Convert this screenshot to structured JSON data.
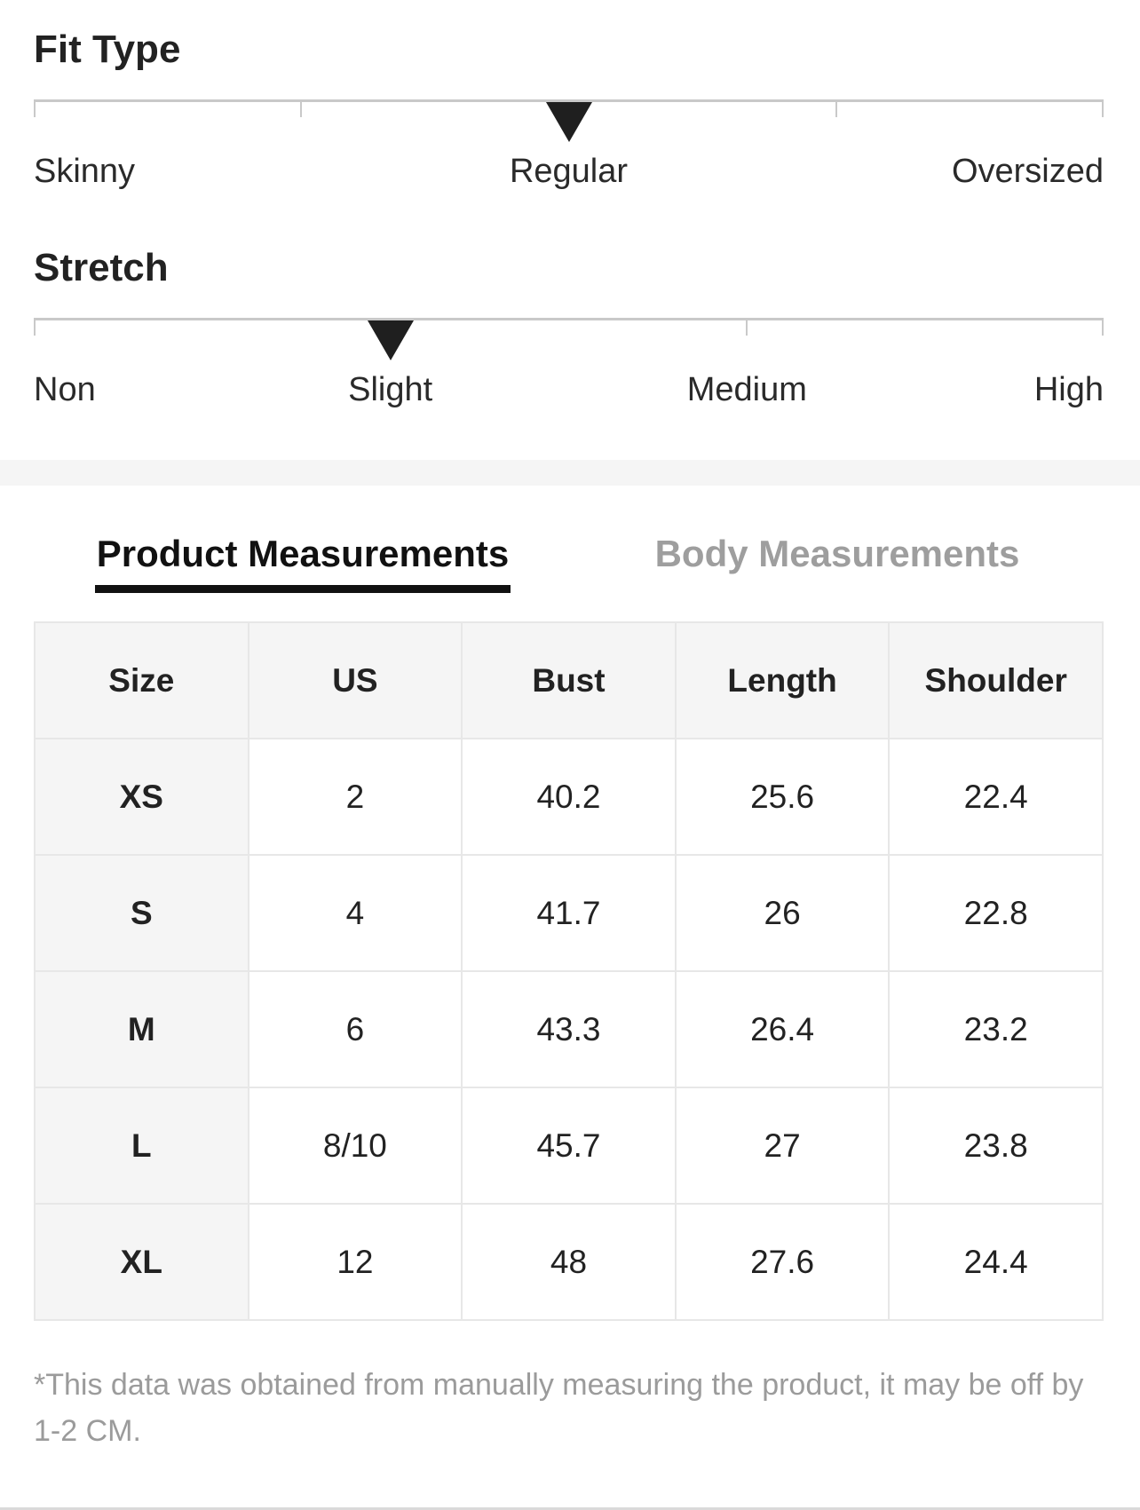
{
  "scales": [
    {
      "id": "fit-type",
      "title": "Fit Type",
      "options": [
        "Skinny",
        "Regular",
        "Oversized"
      ],
      "selected": "Regular",
      "selected_index": 1
    },
    {
      "id": "stretch",
      "title": "Stretch",
      "options": [
        "Non",
        "Slight",
        "Medium",
        "High"
      ],
      "selected": "Slight",
      "selected_index": 1
    }
  ],
  "tabs": [
    {
      "label": "Product Measurements",
      "active": true
    },
    {
      "label": "Body Measurements",
      "active": false
    }
  ],
  "size_table": {
    "columns": [
      "Size",
      "US",
      "Bust",
      "Length",
      "Shoulder"
    ],
    "rows": [
      [
        "XS",
        "2",
        "40.2",
        "25.6",
        "22.4"
      ],
      [
        "S",
        "4",
        "41.7",
        "26",
        "22.8"
      ],
      [
        "M",
        "6",
        "43.3",
        "26.4",
        "23.2"
      ],
      [
        "L",
        "8/10",
        "45.7",
        "27",
        "23.8"
      ],
      [
        "XL",
        "12",
        "48",
        "27.6",
        "24.4"
      ]
    ]
  },
  "footnote": "*This data was obtained from manually measuring the product, it may be off by 1-2 CM.",
  "colors": {
    "marker": "#1f1f1f",
    "active_tab": "#111111",
    "inactive_tab": "#9e9e9e",
    "scale_line": "#c9c9c9",
    "table_border": "#e7e7e7",
    "shaded_cell_bg": "#f5f5f5",
    "muted_text": "#9b9b9b",
    "band_bg": "#f5f5f5"
  }
}
